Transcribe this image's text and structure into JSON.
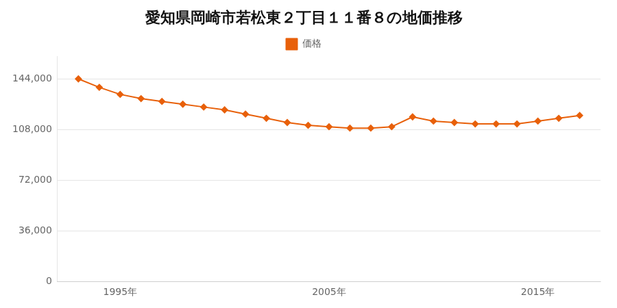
{
  "chart_data": {
    "type": "line",
    "title": "愛知県岡崎市若松東２丁目１１番８の地価推移",
    "x": [
      1993,
      1994,
      1995,
      1996,
      1997,
      1998,
      1999,
      2000,
      2001,
      2002,
      2003,
      2004,
      2005,
      2006,
      2007,
      2008,
      2009,
      2010,
      2011,
      2012,
      2013,
      2014,
      2015,
      2016,
      2017
    ],
    "series": [
      {
        "name": "価格",
        "color": "#e8600a",
        "marker": "diamond",
        "line_style": "solid",
        "values": [
          144000,
          138000,
          133000,
          130000,
          128000,
          126000,
          124000,
          122000,
          119000,
          116000,
          113000,
          111000,
          110000,
          109000,
          109000,
          110000,
          117000,
          114000,
          113000,
          112000,
          112000,
          112000,
          114000,
          116000,
          118000
        ]
      }
    ],
    "xlim": [
      1992,
      2018
    ],
    "xticks": [
      {
        "value": 1995,
        "label": "1995年"
      },
      {
        "value": 2005,
        "label": "2005年"
      },
      {
        "value": 2015,
        "label": "2015年"
      }
    ],
    "ylim": [
      0,
      160000
    ],
    "yticks": [
      0,
      {
        "value": 36000,
        "label": "36,000"
      },
      {
        "value": 72000,
        "label": "72,000"
      },
      {
        "value": 108000,
        "label": "108,000"
      },
      {
        "value": 144000,
        "label": "144,000"
      }
    ],
    "grid": "y",
    "legend": "top"
  }
}
